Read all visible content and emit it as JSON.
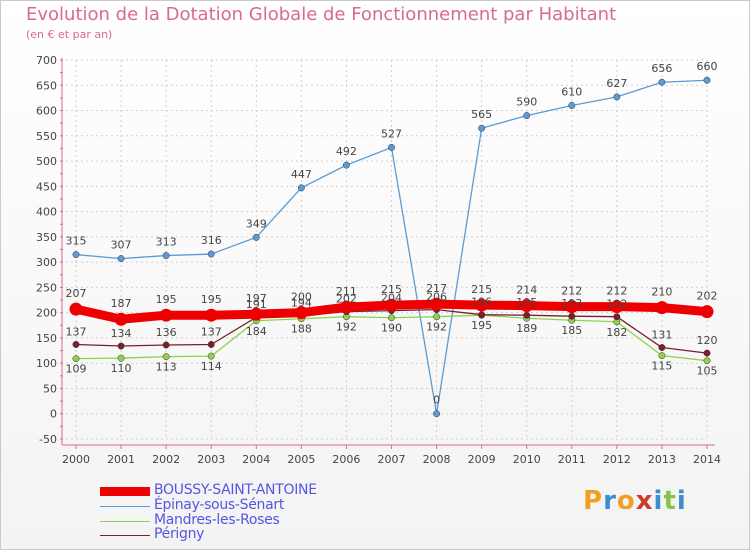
{
  "title": "Evolution de la Dotation Globale de Fonctionnement par Habitant",
  "subtitle": "(en € et par an)",
  "logo": {
    "text": "Proxiti",
    "letters": [
      {
        "ch": "P",
        "color": "#f0a020"
      },
      {
        "ch": "r",
        "color": "#3a8fd0"
      },
      {
        "ch": "o",
        "color": "#f0a020"
      },
      {
        "ch": "x",
        "color": "#d03a2a"
      },
      {
        "ch": "i",
        "color": "#3a8fd0"
      },
      {
        "ch": "t",
        "color": "#8bc34a"
      },
      {
        "ch": "i",
        "color": "#3a8fd0"
      }
    ]
  },
  "colors": {
    "axis": "#d96a8e",
    "grid": "#d0d0d0",
    "label": "#444444"
  },
  "chart_data": {
    "type": "line",
    "x": [
      "2000",
      "2001",
      "2002",
      "2003",
      "2004",
      "2005",
      "2006",
      "2007",
      "2008",
      "2009",
      "2010",
      "2011",
      "2012",
      "2013",
      "2014"
    ],
    "ylim": [
      -50,
      700
    ],
    "yticks": [
      -50,
      0,
      50,
      100,
      150,
      200,
      250,
      300,
      350,
      400,
      450,
      500,
      550,
      600,
      650,
      700
    ],
    "grid": true,
    "legend_position": "bottom-left",
    "series": [
      {
        "name": "BOUSSY-SAINT-ANTOINE",
        "color": "#ee0000",
        "values": [
          207,
          187,
          195,
          195,
          197,
          200,
          211,
          215,
          217,
          215,
          214,
          212,
          212,
          210,
          202
        ]
      },
      {
        "name": "Épinay-sous-Sénart",
        "color": "#5b9bd5",
        "values": [
          315,
          307,
          313,
          316,
          349,
          447,
          492,
          527,
          0,
          565,
          590,
          610,
          627,
          656,
          660
        ]
      },
      {
        "name": "Mandres-les-Roses",
        "color": "#8fd14f",
        "values": [
          109,
          110,
          113,
          114,
          184,
          188,
          192,
          190,
          192,
          195,
          189,
          185,
          182,
          115,
          105
        ]
      },
      {
        "name": "Périgny",
        "color": "#7b1f2a",
        "values": [
          137,
          134,
          136,
          137,
          191,
          194,
          202,
          204,
          206,
          196,
          195,
          193,
          192,
          131,
          120
        ]
      }
    ]
  }
}
